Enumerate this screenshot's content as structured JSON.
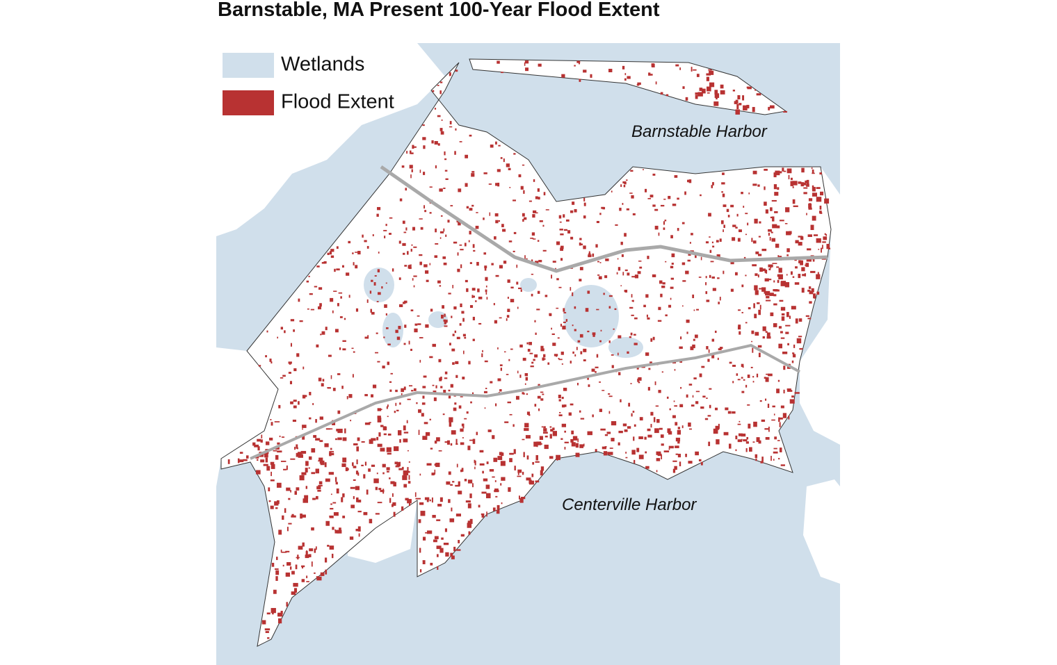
{
  "title": "Barnstable, MA Present 100-Year Flood Extent",
  "legend": [
    {
      "label": "Wetlands",
      "color": "#d0dfeb"
    },
    {
      "label": "Flood Extent",
      "color": "#b83232"
    }
  ],
  "labels": [
    "Barnstable Harbor",
    "Centerville Harbor"
  ]
}
